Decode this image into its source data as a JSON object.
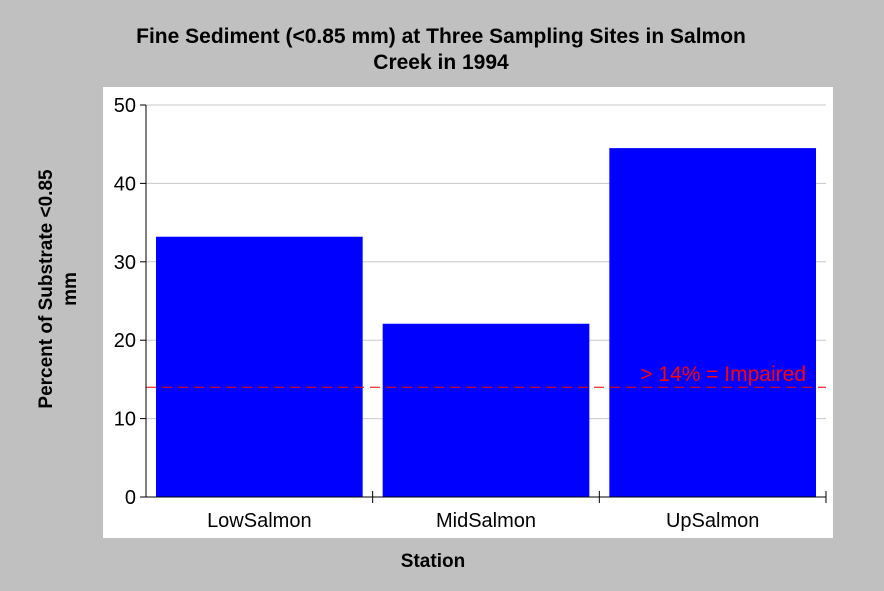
{
  "chart_data": {
    "type": "bar",
    "title_line1": "Fine Sediment (<0.85 mm) at Three Sampling Sites in Salmon",
    "title_line2": "Creek in 1994",
    "xlabel": "Station",
    "ylabel_line1": "Percent of Substrate <0.85",
    "ylabel_line2": "mm",
    "categories": [
      "LowSalmon",
      "MidSalmon",
      "UpSalmon"
    ],
    "values": [
      33.2,
      22.1,
      44.5
    ],
    "ylim": [
      0,
      50
    ],
    "yticks": [
      0,
      10,
      20,
      30,
      40,
      50
    ],
    "grid": true,
    "reference_line": {
      "value": 14,
      "label": "> 14% = Impaired",
      "color": "#ff0000",
      "style": "dashed"
    },
    "colors": {
      "bar": "#0000ff",
      "plot_background": "#ffffff",
      "page_background": "#c0c0c0",
      "grid": "#c8c8c8"
    }
  }
}
